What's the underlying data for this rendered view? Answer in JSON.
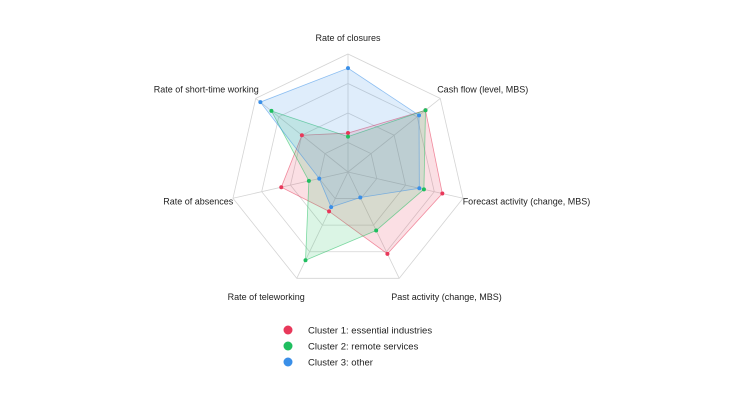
{
  "chart_data": {
    "type": "radar",
    "title": "",
    "axes": [
      "Rate of closures",
      "Cash flow (level, MBS)",
      "Forecast activity (change, MBS)",
      "Past activity (change, MBS)",
      "Rate of teleworking",
      "Rate of absences",
      "Rate of short-time working"
    ],
    "rlim": [
      0,
      1
    ],
    "grid": true,
    "grid_levels": 4,
    "legend_position": "bottom",
    "series": [
      {
        "name": "Cluster 1: essential industries",
        "color": "#e8385a",
        "values": [
          0.33,
          0.84,
          0.82,
          0.77,
          0.37,
          0.58,
          0.5
        ]
      },
      {
        "name": "Cluster 2: remote services",
        "color": "#1fbe5f",
        "values": [
          0.3,
          0.84,
          0.66,
          0.55,
          0.83,
          0.34,
          0.83
        ]
      },
      {
        "name": "Cluster 3: other",
        "color": "#3a8fe8",
        "values": [
          0.88,
          0.77,
          0.62,
          0.24,
          0.33,
          0.25,
          0.95
        ]
      }
    ]
  }
}
